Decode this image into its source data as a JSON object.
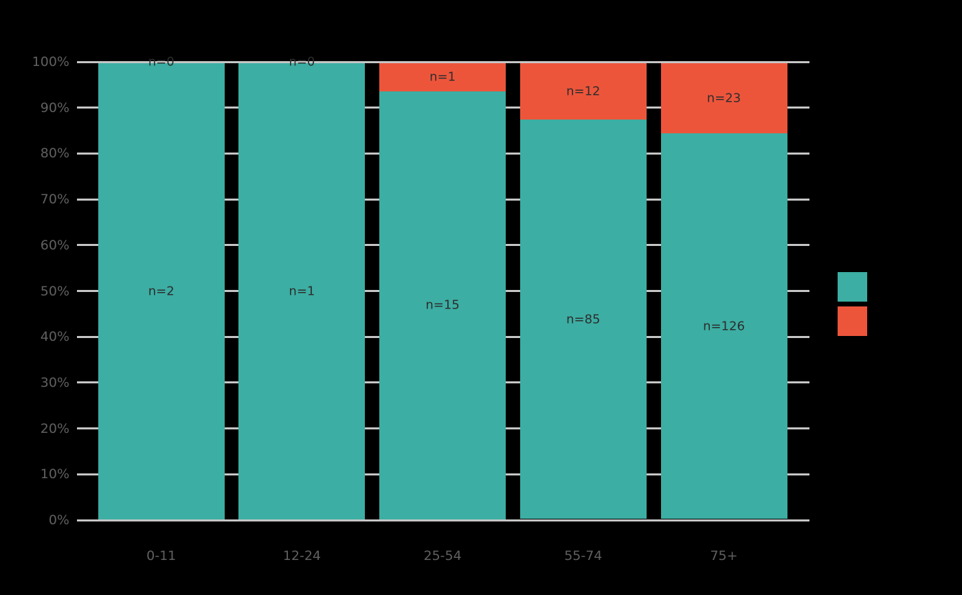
{
  "chart_data": {
    "type": "bar",
    "subtype": "stacked-100-percent",
    "title": "",
    "categories": [
      "0-11",
      "12-24",
      "25-54",
      "55-74",
      "75+"
    ],
    "series": [
      {
        "name": "teal",
        "color": "#3CAEA3",
        "counts": [
          2,
          1,
          15,
          85,
          126
        ],
        "bar_labels": [
          "n=2",
          "n=1",
          "n=15",
          "n=85",
          "n=126"
        ],
        "percent_of_bar": [
          100,
          100,
          93.75,
          87.63,
          84.56
        ]
      },
      {
        "name": "red",
        "color": "#ED553B",
        "counts": [
          0,
          0,
          1,
          12,
          23
        ],
        "bar_labels": [
          "n=0",
          "n=0",
          "n=1",
          "n=12",
          "n=23"
        ],
        "percent_of_bar": [
          0,
          0,
          6.25,
          12.37,
          15.44
        ]
      }
    ],
    "y_axis": {
      "tick_labels": [
        "0%",
        "10%",
        "20%",
        "30%",
        "40%",
        "50%",
        "60%",
        "70%",
        "80%",
        "90%",
        "100%"
      ],
      "range": [
        0,
        100
      ],
      "unit": "%"
    },
    "x_axis": {
      "tick_labels": [
        "0-11",
        "12-24",
        "25-54",
        "55-74",
        "75+"
      ]
    },
    "grid": "horizontal",
    "legend": {
      "position": "right",
      "swatch_colors": [
        "#3CAEA3",
        "#ED553B"
      ],
      "labels_visible": false
    },
    "colors": {
      "background": "#000000",
      "gridline": "#c6c6c6",
      "axis_text": "#606060",
      "bar_label_text": "#2d2d2d"
    }
  }
}
